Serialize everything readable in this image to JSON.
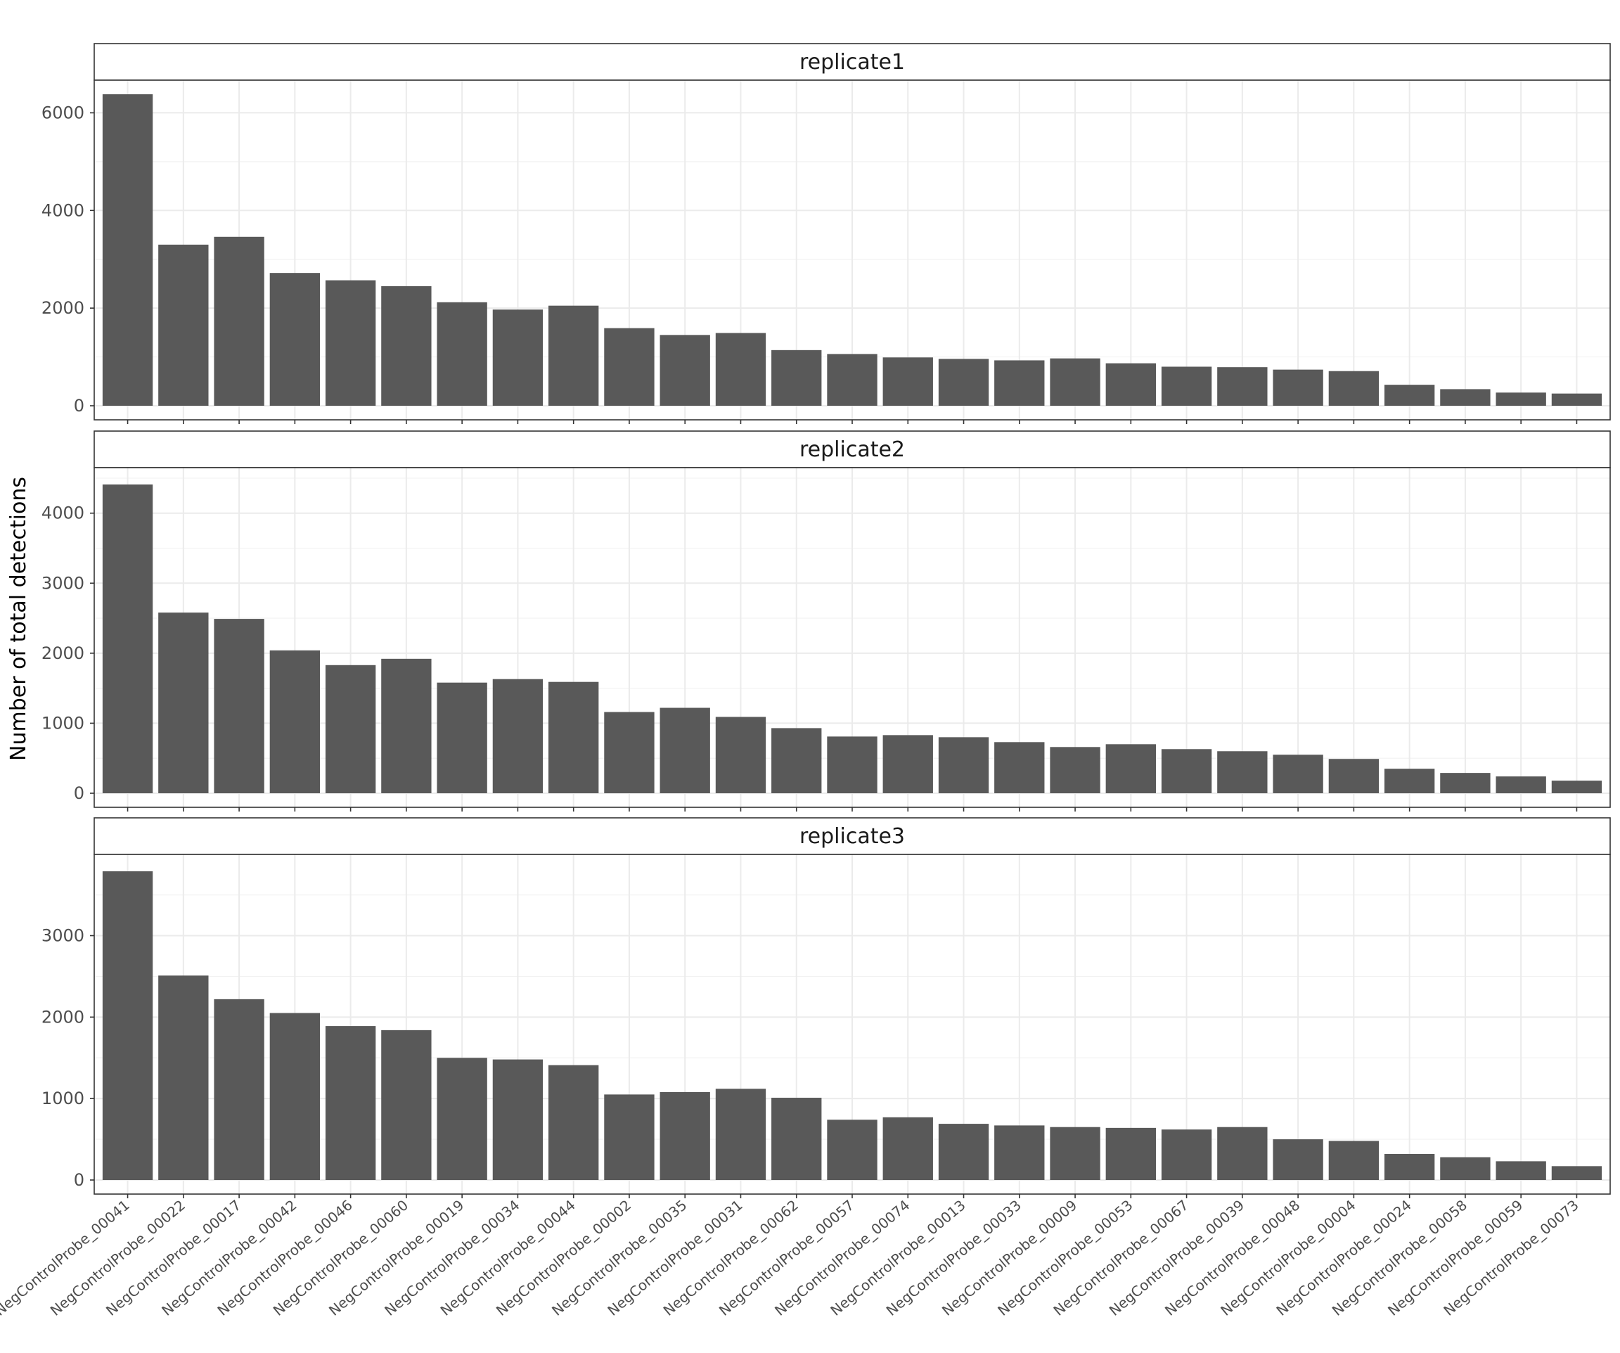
{
  "chart_data": {
    "type": "bar",
    "ylabel": "Number of total detections",
    "xlabel": "",
    "categories": [
      "NegControlProbe_00041",
      "NegControlProbe_00022",
      "NegControlProbe_00017",
      "NegControlProbe_00042",
      "NegControlProbe_00046",
      "NegControlProbe_00060",
      "NegControlProbe_00019",
      "NegControlProbe_00034",
      "NegControlProbe_00044",
      "NegControlProbe_00002",
      "NegControlProbe_00035",
      "NegControlProbe_00031",
      "NegControlProbe_00062",
      "NegControlProbe_00057",
      "NegControlProbe_00074",
      "NegControlProbe_00013",
      "NegControlProbe_00033",
      "NegControlProbe_00009",
      "NegControlProbe_00053",
      "NegControlProbe_00067",
      "NegControlProbe_00039",
      "NegControlProbe_00048",
      "NegControlProbe_00004",
      "NegControlProbe_00024",
      "NegControlProbe_00058",
      "NegControlProbe_00059",
      "NegControlProbe_00073"
    ],
    "bar_color": "#595959",
    "grid": true,
    "panels": [
      {
        "strip": "replicate1",
        "ylim": [
          0,
          6640
        ],
        "yticks": [
          0,
          2000,
          4000,
          6000
        ],
        "values": [
          6380,
          3300,
          3460,
          2720,
          2570,
          2450,
          2120,
          1970,
          2050,
          1590,
          1450,
          1490,
          1140,
          1060,
          990,
          960,
          930,
          970,
          870,
          800,
          790,
          740,
          710,
          430,
          340,
          270,
          250
        ]
      },
      {
        "strip": "replicate2",
        "ylim": [
          0,
          4630
        ],
        "yticks": [
          0,
          1000,
          2000,
          3000,
          4000
        ],
        "values": [
          4410,
          2580,
          2490,
          2040,
          1830,
          1920,
          1580,
          1630,
          1590,
          1160,
          1220,
          1090,
          930,
          810,
          830,
          800,
          730,
          660,
          700,
          630,
          600,
          550,
          490,
          350,
          290,
          240,
          180
        ]
      },
      {
        "strip": "replicate3",
        "ylim": [
          0,
          3980
        ],
        "yticks": [
          0,
          1000,
          2000,
          3000
        ],
        "values": [
          3790,
          2510,
          2220,
          2050,
          1890,
          1840,
          1500,
          1480,
          1410,
          1050,
          1080,
          1120,
          1010,
          740,
          770,
          690,
          670,
          650,
          640,
          620,
          650,
          500,
          480,
          320,
          280,
          230,
          170
        ]
      }
    ]
  }
}
